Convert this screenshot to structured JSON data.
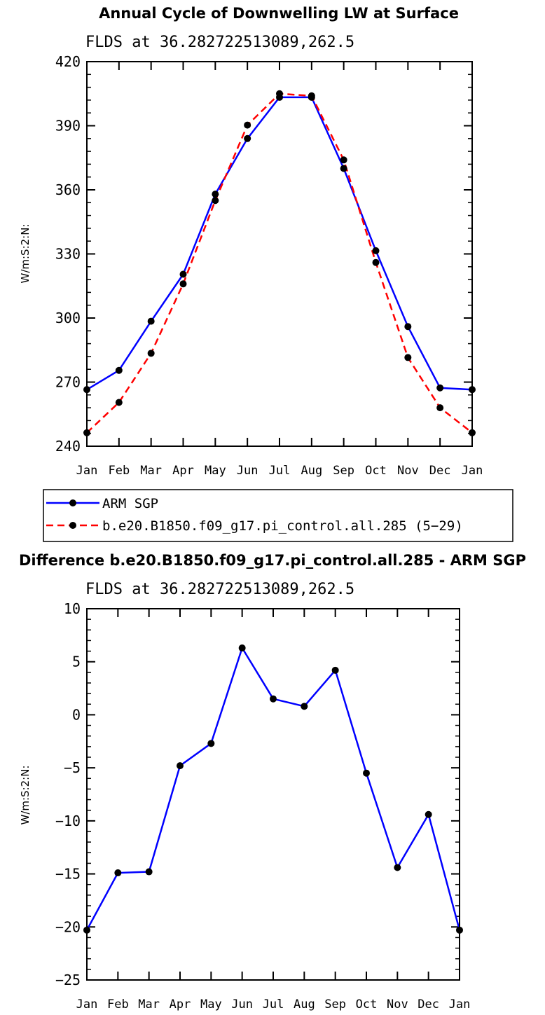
{
  "chart_data": [
    {
      "type": "line",
      "title": "Annual Cycle of Downwelling LW at Surface",
      "subtitle": "FLDS at 36.282722513089,262.5",
      "ylabel": "W/m:S:2:N:",
      "xlabel": "",
      "ylim": [
        240,
        420
      ],
      "yticks": [
        240,
        270,
        300,
        330,
        360,
        390,
        420
      ],
      "categories": [
        "Jan",
        "Feb",
        "Mar",
        "Apr",
        "May",
        "Jun",
        "Jul",
        "Aug",
        "Sep",
        "Oct",
        "Nov",
        "Dec",
        "Jan"
      ],
      "series": [
        {
          "name": "ARM SGP",
          "color": "#0000ff",
          "dash": "solid",
          "values": [
            266.5,
            275.5,
            298.5,
            320.5,
            358,
            384,
            403.3,
            403.3,
            370,
            331.5,
            296,
            267.3,
            266.5
          ]
        },
        {
          "name": "b.e20.B1850.f09_g17.pi_control.all.285 (5−29)",
          "color": "#ff0000",
          "dash": "dashed",
          "values": [
            246.3,
            260.5,
            283.5,
            316,
            355,
            390.3,
            405,
            404,
            374,
            326,
            281.5,
            258,
            246.3
          ]
        }
      ],
      "legend": {
        "position": "bottom-left",
        "entries": [
          "ARM SGP",
          "b.e20.B1850.f09_g17.pi_control.all.285 (5−29)"
        ]
      },
      "grid": false
    },
    {
      "type": "line",
      "title": "Difference b.e20.B1850.f09_g17.pi_control.all.285 - ARM SGP",
      "subtitle": "FLDS at 36.282722513089,262.5",
      "ylabel": "W/m:S:2:N:",
      "xlabel": "",
      "ylim": [
        -25,
        10
      ],
      "yticks": [
        -25,
        -20,
        -15,
        -10,
        -5,
        0,
        5,
        10
      ],
      "ytick_labels": [
        "−25",
        "−20",
        "−15",
        "−10",
        "−5",
        "0",
        "5",
        "10"
      ],
      "categories": [
        "Jan",
        "Feb",
        "Mar",
        "Apr",
        "May",
        "Jun",
        "Jul",
        "Aug",
        "Sep",
        "Oct",
        "Nov",
        "Dec",
        "Jan"
      ],
      "series": [
        {
          "color": "#0000ff",
          "dash": "solid",
          "values": [
            -20.3,
            -14.9,
            -14.8,
            -4.8,
            -2.7,
            6.3,
            1.5,
            0.8,
            4.2,
            -5.5,
            -14.4,
            -9.4,
            -20.3
          ]
        }
      ],
      "grid": false
    }
  ]
}
